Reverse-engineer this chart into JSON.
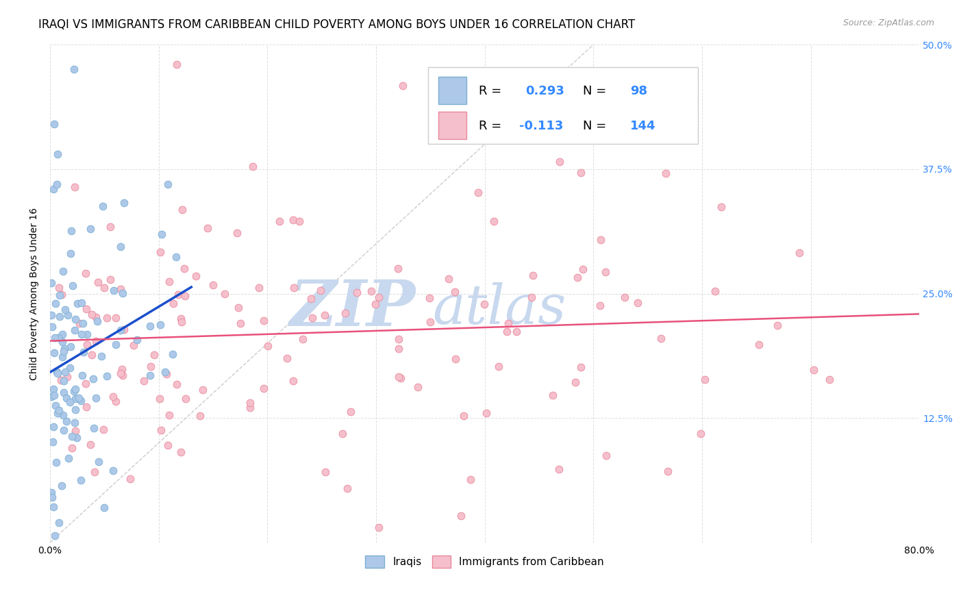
{
  "title": "IRAQI VS IMMIGRANTS FROM CARIBBEAN CHILD POVERTY AMONG BOYS UNDER 16 CORRELATION CHART",
  "source": "Source: ZipAtlas.com",
  "ylabel": "Child Poverty Among Boys Under 16",
  "xlim": [
    0.0,
    0.8
  ],
  "ylim": [
    0.0,
    0.5
  ],
  "iraqis_R": 0.293,
  "iraqis_N": 98,
  "caribbean_R": -0.113,
  "caribbean_N": 144,
  "iraqis_color": "#adc8e8",
  "iraqis_edge_color": "#7bafd4",
  "caribbean_color": "#f5bfcc",
  "caribbean_edge_color": "#e8889a",
  "iraqis_trend_color": "#1a4fcc",
  "caribbean_trend_color": "#e8507a",
  "diagonal_color": "#bbbbbb",
  "watermark_zip_color": "#c8d8ee",
  "watermark_atlas_color": "#c8d8ee",
  "title_fontsize": 12,
  "axis_label_fontsize": 10,
  "tick_fontsize": 10,
  "legend_fontsize": 13,
  "right_tick_color": "#3388ff",
  "background_color": "#ffffff",
  "grid_color": "#dddddd",
  "legend_text_color": "#3388ff"
}
